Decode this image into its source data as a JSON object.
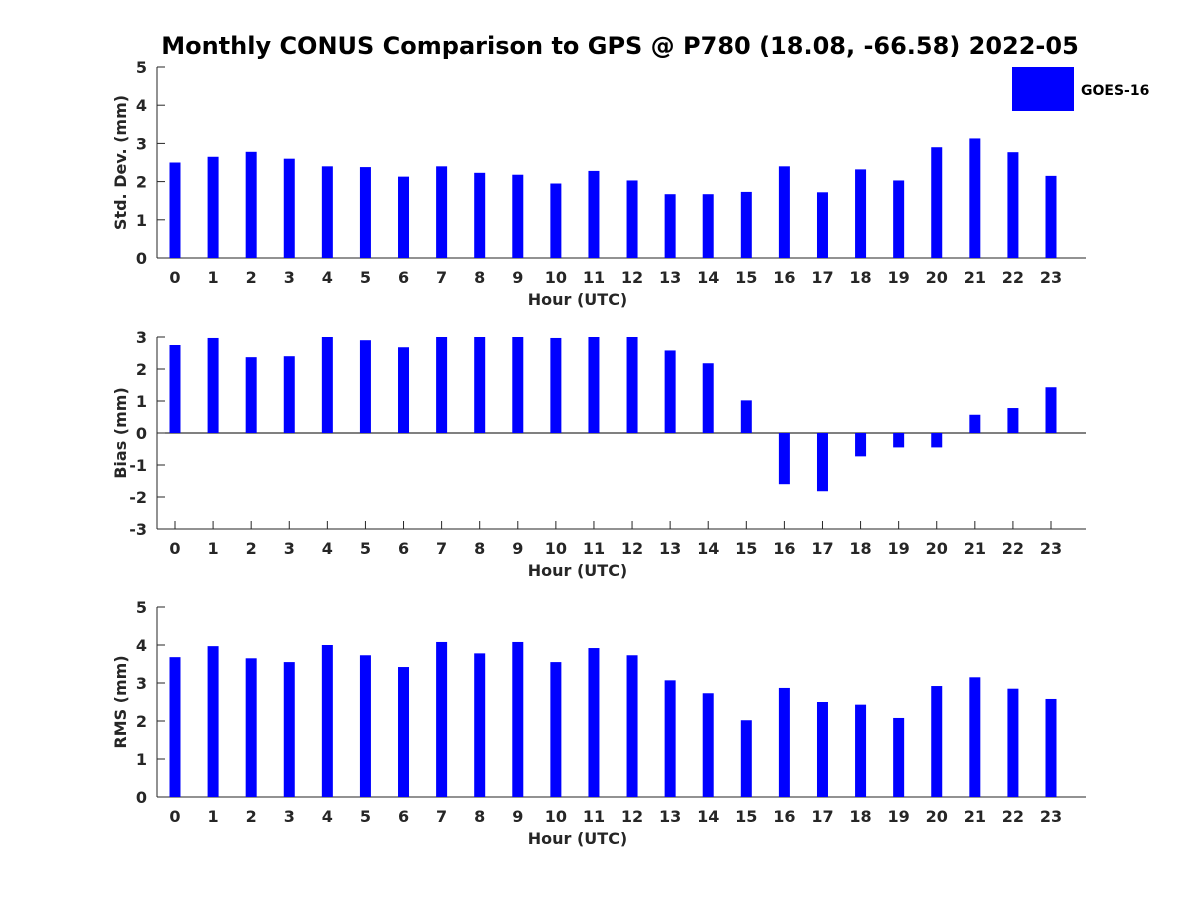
{
  "figure": {
    "title": "Monthly CONUS Comparison to GPS @ P780 (18.08, -66.58) 2022-05"
  },
  "legend": {
    "label": "GOES-16",
    "color": "#0000ff",
    "placement": "top-right"
  },
  "chart_data": [
    {
      "type": "bar",
      "categories": [
        "0",
        "1",
        "2",
        "3",
        "4",
        "5",
        "6",
        "7",
        "8",
        "9",
        "10",
        "11",
        "12",
        "13",
        "14",
        "15",
        "16",
        "17",
        "18",
        "19",
        "20",
        "21",
        "22",
        "23"
      ],
      "series": [
        {
          "name": "GOES-16",
          "color": "#0000ff",
          "values": [
            2.5,
            2.65,
            2.78,
            2.6,
            2.4,
            2.38,
            2.13,
            2.4,
            2.23,
            2.18,
            1.95,
            2.28,
            2.03,
            1.67,
            1.67,
            1.73,
            2.4,
            1.72,
            2.32,
            2.03,
            2.9,
            3.13,
            2.77,
            2.15
          ]
        }
      ],
      "xlabel": "Hour (UTC)",
      "ylabel": "Std. Dev. (mm)",
      "ylim": [
        0,
        5
      ],
      "yticks": [
        0,
        1,
        2,
        3,
        4,
        5
      ],
      "grid": false
    },
    {
      "type": "bar",
      "categories": [
        "0",
        "1",
        "2",
        "3",
        "4",
        "5",
        "6",
        "7",
        "8",
        "9",
        "10",
        "11",
        "12",
        "13",
        "14",
        "15",
        "16",
        "17",
        "18",
        "19",
        "20",
        "21",
        "22",
        "23"
      ],
      "series": [
        {
          "name": "GOES-16",
          "color": "#0000ff",
          "values": [
            2.75,
            2.97,
            2.37,
            2.4,
            3.0,
            2.9,
            2.68,
            3.0,
            3.0,
            3.0,
            2.97,
            3.0,
            3.0,
            2.58,
            2.18,
            1.02,
            -1.6,
            -1.82,
            -0.73,
            -0.45,
            -0.45,
            0.57,
            0.78,
            1.43
          ]
        }
      ],
      "xlabel": "Hour (UTC)",
      "ylabel": "Bias (mm)",
      "ylim": [
        -3,
        3
      ],
      "yticks": [
        -3,
        -2,
        -1,
        0,
        1,
        2,
        3
      ],
      "zero_line": true,
      "grid": false
    },
    {
      "type": "bar",
      "categories": [
        "0",
        "1",
        "2",
        "3",
        "4",
        "5",
        "6",
        "7",
        "8",
        "9",
        "10",
        "11",
        "12",
        "13",
        "14",
        "15",
        "16",
        "17",
        "18",
        "19",
        "20",
        "21",
        "22",
        "23"
      ],
      "series": [
        {
          "name": "GOES-16",
          "color": "#0000ff",
          "values": [
            3.68,
            3.97,
            3.65,
            3.55,
            4.0,
            3.73,
            3.42,
            4.08,
            3.78,
            4.08,
            3.55,
            3.92,
            3.73,
            3.07,
            2.73,
            2.02,
            2.87,
            2.5,
            2.43,
            2.08,
            2.92,
            3.15,
            2.85,
            2.58
          ]
        }
      ],
      "xlabel": "Hour (UTC)",
      "ylabel": "RMS (mm)",
      "ylim": [
        0,
        5
      ],
      "yticks": [
        0,
        1,
        2,
        3,
        4,
        5
      ],
      "grid": false
    }
  ]
}
